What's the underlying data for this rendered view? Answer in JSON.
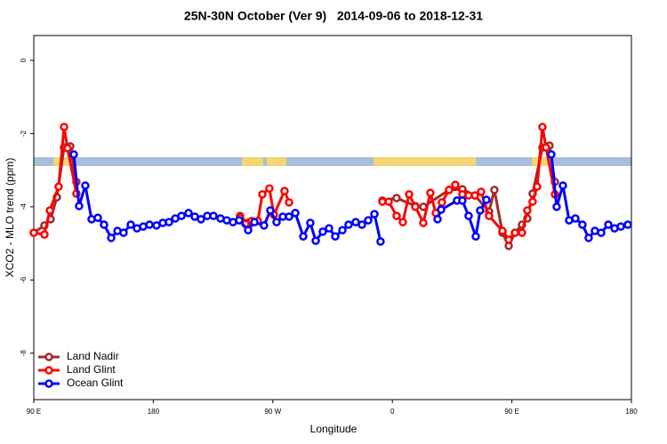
{
  "chart_data": {
    "type": "line",
    "title": "25N-30N October (Ver 9)   2014-09-06 to 2018-12-31",
    "x_label": "Longitude",
    "y_label": "XCO2 - MLO trend (ppm)",
    "xlim": [
      90,
      540
    ],
    "ylim": [
      -9.27,
      0.68
    ],
    "xticks": [
      {
        "value": 90,
        "label": "90 E"
      },
      {
        "value": 180,
        "label": "180"
      },
      {
        "value": 270,
        "label": "90 W"
      },
      {
        "value": 360,
        "label": "0"
      },
      {
        "value": 450,
        "label": "90 E"
      },
      {
        "value": 540,
        "label": "180"
      }
    ],
    "yticks": [
      0,
      -2,
      -4,
      -6,
      -8
    ],
    "legend": "bottom-left",
    "series": [
      {
        "name": "Land Nadir",
        "color": "#a52a2a",
        "x": [
          90,
          98.0,
          102.7,
          107.4,
          112.8,
          117.5,
          122.1,
          null,
          245.3,
          250.7,
          null,
          352.5,
          363.2,
          377.3,
          383.3,
          402.7,
          412.7,
          422.1,
          432.8,
          436.8,
          442.9,
          447.6,
          452.3,
          457.6,
          461.6,
          465.6,
          473.0,
          478.3,
          482.4
        ],
        "values": [
          -4.71,
          -4.51,
          -4.34,
          -3.74,
          -2.38,
          -2.35,
          -3.32,
          null,
          -4.25,
          -4.44,
          null,
          -3.83,
          -3.76,
          -3.98,
          -4.0,
          -3.54,
          -3.52,
          -3.69,
          -4.13,
          -3.54,
          -4.71,
          -5.07,
          -4.71,
          -4.49,
          -4.32,
          -3.64,
          -2.38,
          -2.33,
          -3.32
        ]
      },
      {
        "name": "Land Glint",
        "color": "#ff0000",
        "x": [
          90,
          98.0,
          102.1,
          108.7,
          112.8,
          115.4,
          122.1,
          null,
          245.3,
          249.4,
          254.0,
          258.7,
          262.1,
          267.4,
          270.8,
          278.8,
          282.2,
          null,
          352.5,
          357.2,
          363.2,
          367.9,
          372.6,
          377.3,
          383.3,
          388.6,
          392.7,
          397.3,
          402.7,
          407.4,
          412.7,
          417.4,
          422.1,
          426.8,
          432.8,
          442.9,
          447.6,
          452.3,
          457.6,
          461.6,
          465.6,
          469.0,
          473.0,
          475.7,
          482.4
        ],
        "values": [
          -4.71,
          -4.76,
          -4.1,
          -3.45,
          -1.82,
          -2.4,
          -3.64,
          null,
          -4.3,
          -4.47,
          -4.39,
          -4.39,
          -3.66,
          -3.5,
          -4.22,
          -3.57,
          -3.88,
          null,
          -3.86,
          -3.86,
          -4.25,
          -4.42,
          -3.66,
          -4.0,
          -4.44,
          -3.62,
          -4.17,
          -3.88,
          -3.54,
          -3.4,
          -3.66,
          -3.69,
          -3.69,
          -3.59,
          -4.25,
          -4.66,
          -4.9,
          -4.71,
          -4.71,
          -4.1,
          -3.86,
          -3.45,
          -1.82,
          -2.38,
          -3.66
        ]
      },
      {
        "name": "Ocean Glint",
        "color": "#0000ff",
        "x": [
          120.1,
          124.1,
          128.8,
          133.5,
          138.2,
          142.9,
          148.3,
          153.0,
          157.6,
          163.0,
          167.7,
          172.4,
          177.1,
          182.4,
          187.1,
          191.8,
          196.5,
          201.2,
          206.5,
          211.2,
          215.9,
          220.6,
          225.3,
          230.6,
          235.3,
          240.0,
          244.7,
          251.4,
          256.1,
          263.4,
          268.1,
          272.8,
          277.5,
          282.2,
          286.9,
          292.9,
          298.2,
          302.3,
          307.6,
          312.3,
          317.0,
          322.4,
          327.0,
          332.4,
          337.1,
          341.8,
          346.5,
          351.1,
          null,
          394.0,
          396.7,
          408.7,
          412.7,
          417.4,
          422.8,
          426.1,
          430.8,
          null,
          479.7,
          483.7,
          488.4,
          493.1,
          497.8,
          503.1,
          507.8,
          512.5,
          517.2,
          522.6,
          527.3,
          532.0,
          537.3
        ],
        "values": [
          -2.57,
          -3.98,
          -3.42,
          -4.34,
          -4.3,
          -4.49,
          -4.85,
          -4.66,
          -4.71,
          -4.49,
          -4.59,
          -4.54,
          -4.49,
          -4.51,
          -4.44,
          -4.42,
          -4.32,
          -4.25,
          -4.17,
          -4.27,
          -4.34,
          -4.25,
          -4.25,
          -4.32,
          -4.37,
          -4.42,
          -4.37,
          -4.64,
          -4.42,
          -4.51,
          -4.1,
          -4.42,
          -4.27,
          -4.27,
          -4.17,
          -4.81,
          -4.44,
          -4.93,
          -4.68,
          -4.59,
          -4.81,
          -4.64,
          -4.49,
          -4.42,
          -4.49,
          -4.37,
          -4.2,
          -4.95,
          null,
          -4.34,
          -4.08,
          -3.83,
          -3.83,
          -4.25,
          -4.81,
          -4.1,
          -3.81,
          null,
          -2.57,
          -4.0,
          -3.42,
          -4.37,
          -4.32,
          -4.49,
          -4.85,
          -4.66,
          -4.71,
          -4.49,
          -4.59,
          -4.54,
          -4.49
        ]
      }
    ]
  }
}
